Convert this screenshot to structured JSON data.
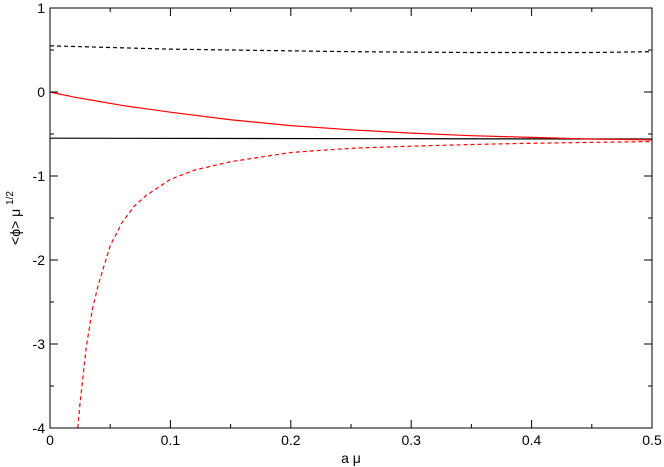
{
  "chart_data": {
    "type": "line",
    "title": "",
    "xlabel": "a μ",
    "ylabel": {
      "base": "<ϕ> μ",
      "superscript": "1/2"
    },
    "xlim": [
      0,
      0.5
    ],
    "ylim": [
      -4,
      1
    ],
    "xticks": [
      0,
      0.1,
      0.2,
      0.3,
      0.4,
      0.5
    ],
    "xtick_labels": [
      "0",
      "0.1",
      "0.2",
      "0.3",
      "0.4",
      "0.5"
    ],
    "yticks": [
      1,
      0,
      -1,
      -2,
      -3,
      -4
    ],
    "ytick_labels": [
      "1",
      "0",
      "-1",
      "-2",
      "-3",
      "-4"
    ],
    "grid": false,
    "legend": "none",
    "series": [
      {
        "color": "#000000",
        "dash": "dashed",
        "x": [
          0,
          0.05,
          0.1,
          0.15,
          0.2,
          0.25,
          0.3,
          0.35,
          0.4,
          0.45,
          0.5
        ],
        "y": [
          0.55,
          0.53,
          0.51,
          0.5,
          0.49,
          0.48,
          0.475,
          0.47,
          0.47,
          0.47,
          0.48
        ]
      },
      {
        "color": "#000000",
        "dash": "solid",
        "x": [
          0,
          0.5
        ],
        "y": [
          -0.55,
          -0.56
        ]
      },
      {
        "color": "#ff0000",
        "dash": "solid",
        "x": [
          0,
          0.02,
          0.04,
          0.06,
          0.08,
          0.1,
          0.15,
          0.2,
          0.25,
          0.3,
          0.35,
          0.4,
          0.45,
          0.5
        ],
        "y": [
          0,
          -0.06,
          -0.11,
          -0.16,
          -0.2,
          -0.24,
          -0.33,
          -0.4,
          -0.45,
          -0.49,
          -0.52,
          -0.54,
          -0.56,
          -0.57
        ]
      },
      {
        "color": "#ff0000",
        "dash": "dashed",
        "x": [
          0.023,
          0.025,
          0.03,
          0.035,
          0.04,
          0.05,
          0.06,
          0.07,
          0.08,
          0.1,
          0.12,
          0.15,
          0.2,
          0.25,
          0.3,
          0.35,
          0.4,
          0.45,
          0.5
        ],
        "y": [
          -4.0,
          -3.7,
          -3.05,
          -2.6,
          -2.3,
          -1.83,
          -1.55,
          -1.36,
          -1.23,
          -1.04,
          -0.93,
          -0.83,
          -0.72,
          -0.67,
          -0.645,
          -0.625,
          -0.61,
          -0.6,
          -0.59
        ]
      }
    ]
  }
}
